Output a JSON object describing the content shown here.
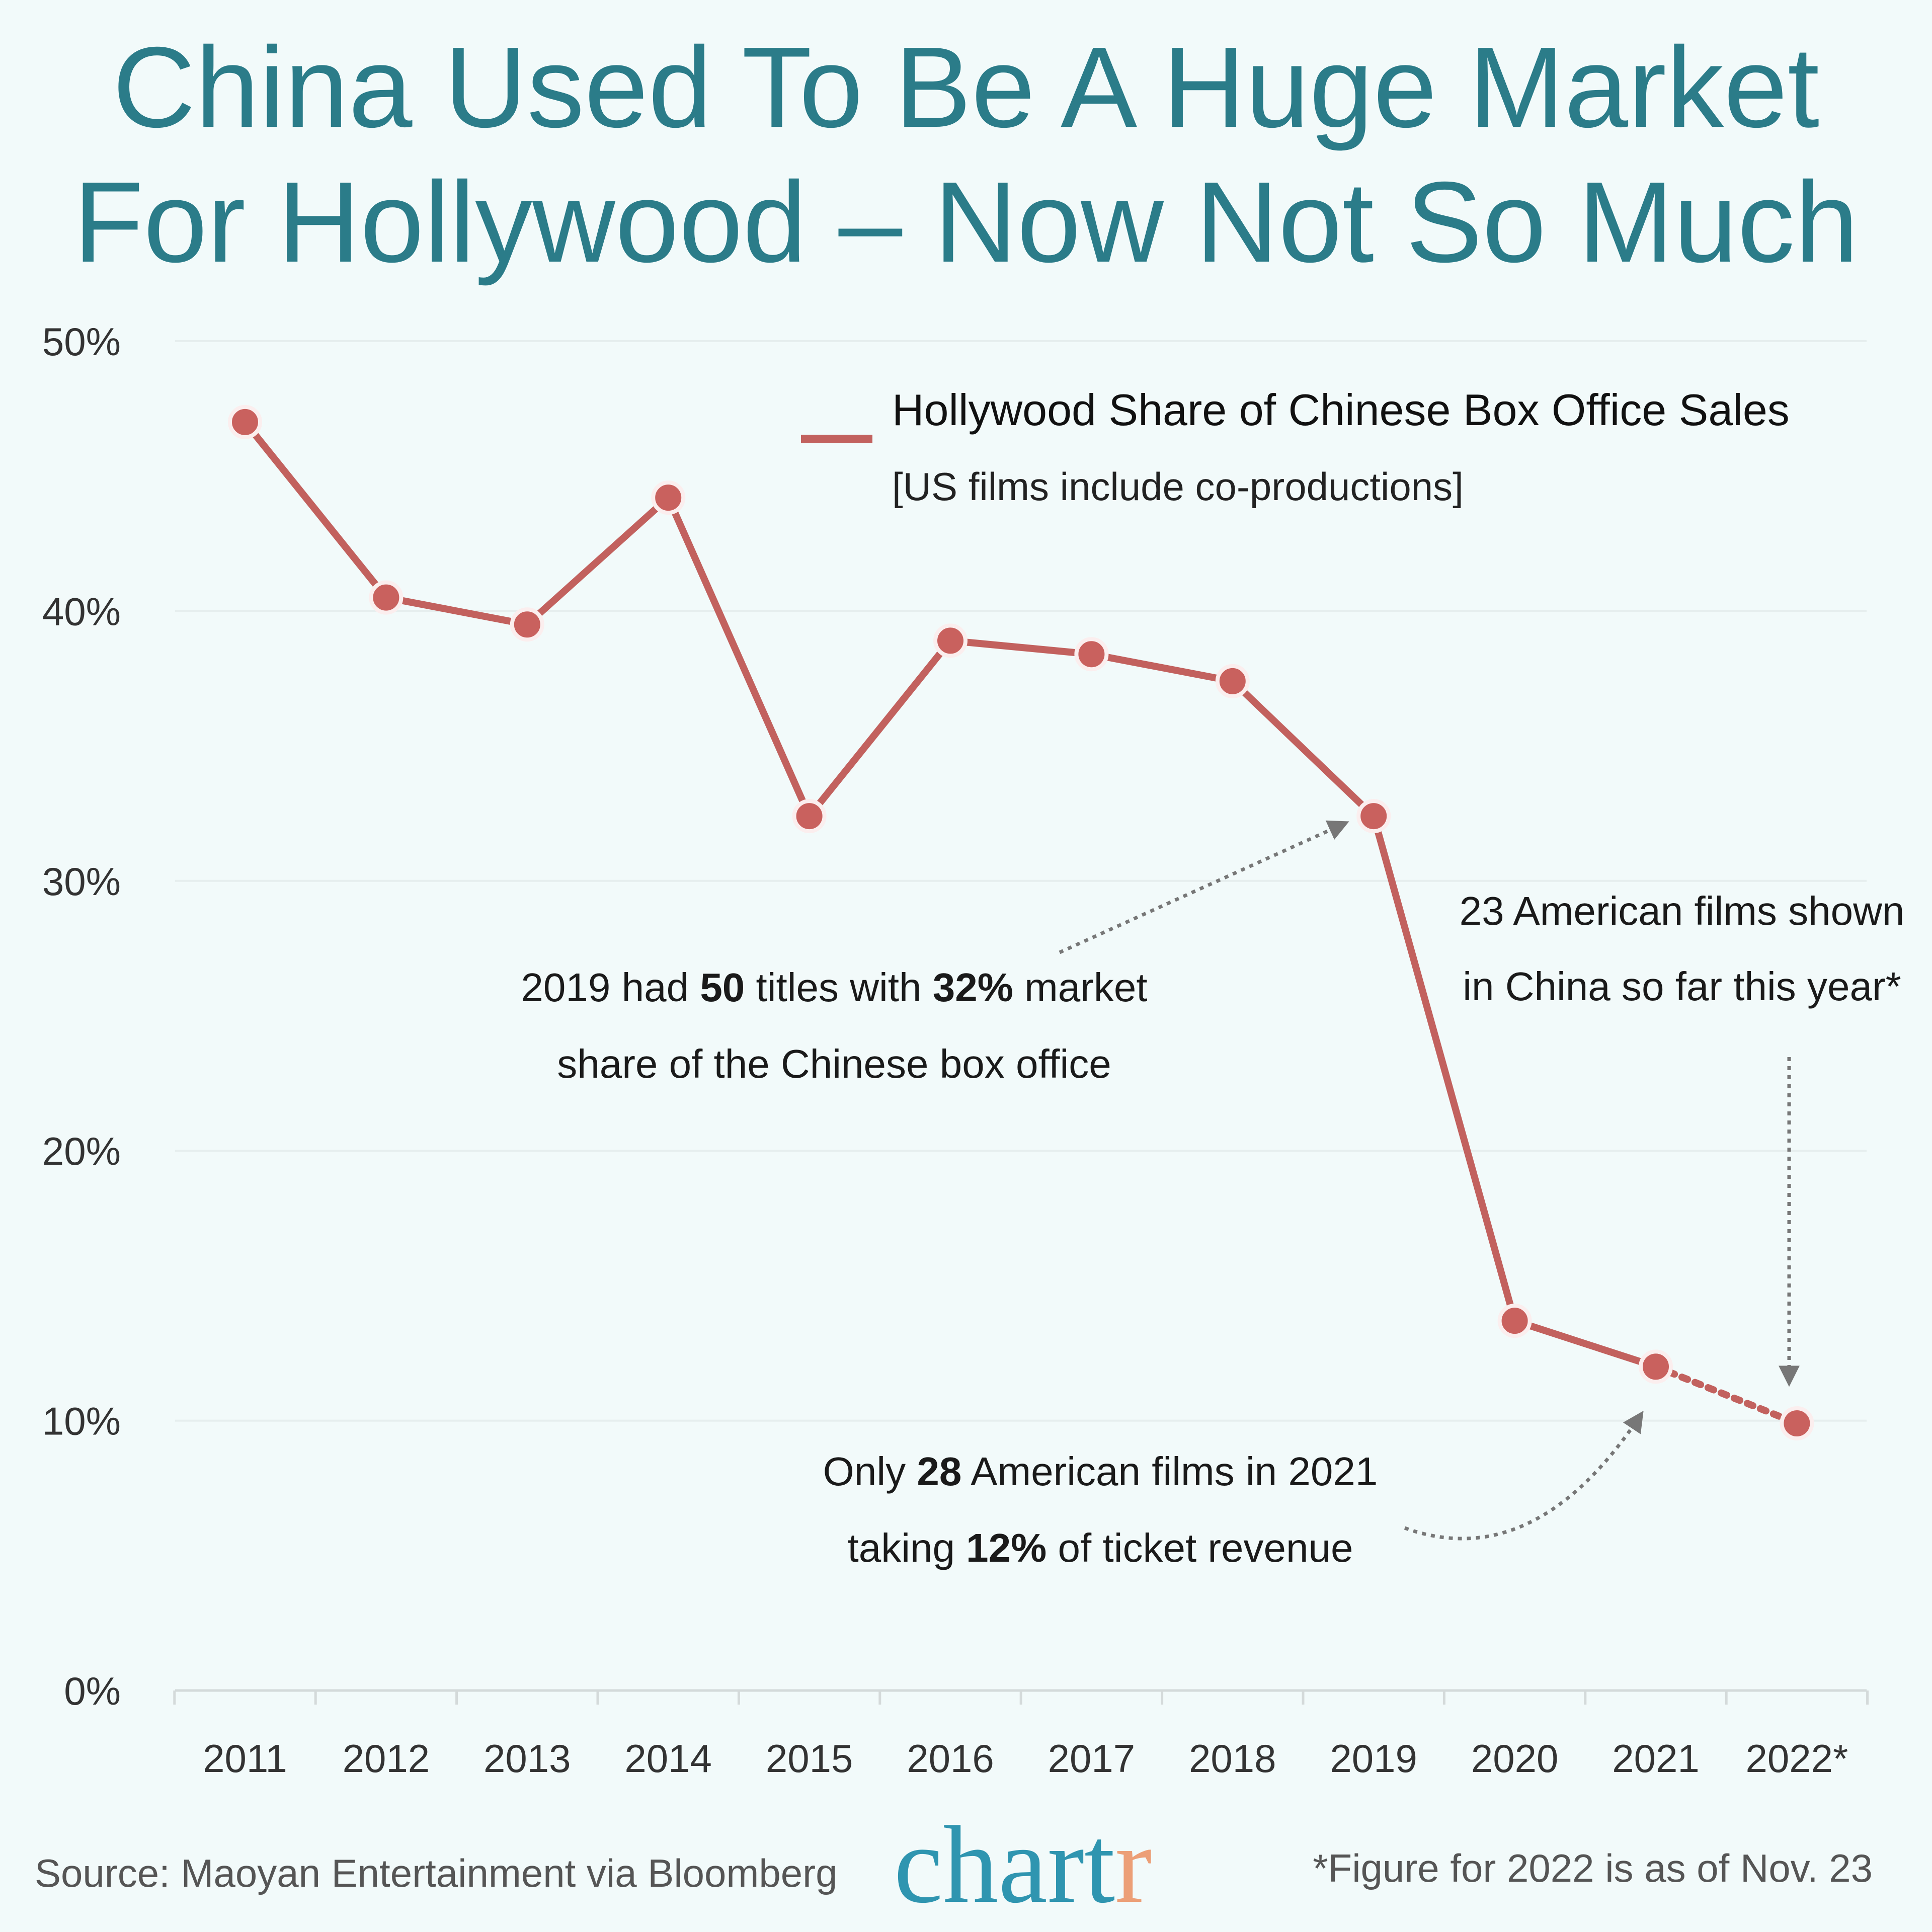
{
  "title": [
    "China Used To Be A Huge Market",
    "For Hollywood – Now Not So Much"
  ],
  "chart_data": {
    "type": "line",
    "categories": [
      "2011",
      "2012",
      "2013",
      "2014",
      "2015",
      "2016",
      "2017",
      "2018",
      "2019",
      "2020",
      "2021",
      "2022*"
    ],
    "series": [
      {
        "name": "Hollywood Share of Chinese Box Office Sales",
        "values": [
          47,
          40.5,
          39.5,
          44.2,
          32.4,
          38.9,
          38.4,
          37.4,
          32.4,
          13.7,
          12.0,
          9.9
        ]
      }
    ],
    "legend": {
      "label": "Hollywood Share of Chinese Box Office Sales",
      "sublabel": "[US films include co-productions]",
      "placement": "top-right"
    },
    "yticks": [
      "0%",
      "10%",
      "20%",
      "30%",
      "40%",
      "50%"
    ],
    "ylim": [
      0,
      50
    ],
    "grid": true,
    "line_color": "#c2615e",
    "last_segment_style": "dotted",
    "annotations": {
      "a2019": {
        "l1": [
          "2019 had ",
          "50",
          " titles with ",
          "32%",
          " market"
        ],
        "l2": "share of the Chinese box office"
      },
      "a2022": {
        "l1": "23 American films shown",
        "l2": "in China so far this year*"
      },
      "a2021": {
        "l1": [
          "Only ",
          "28",
          " American films in 2021"
        ],
        "l2": [
          "taking ",
          "12%",
          " of ticket revenue"
        ]
      }
    }
  },
  "footer": {
    "source": "Source: Maoyan Entertainment via Bloomberg",
    "note": "*Figure for 2022 is as of Nov. 23",
    "logo": [
      "chart",
      "r"
    ],
    "logo_colors": [
      "#2f95b0",
      "#ec9f77"
    ]
  }
}
